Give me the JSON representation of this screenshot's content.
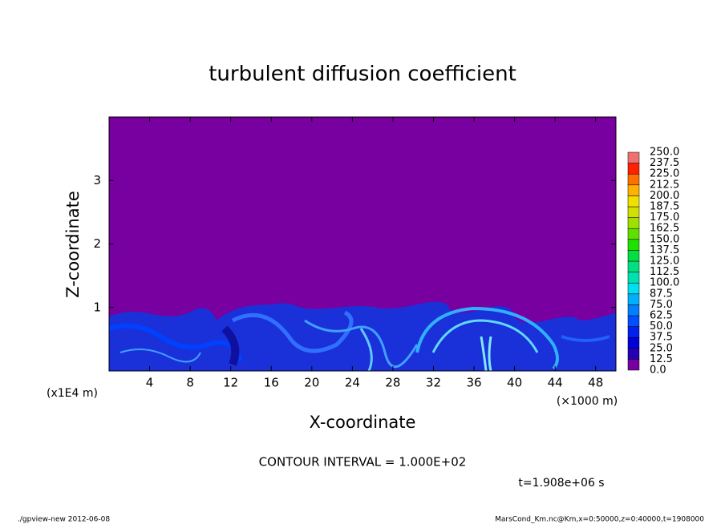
{
  "chart_data": {
    "type": "contour",
    "title": "turbulent diffusion coefficient",
    "xlabel": "X-coordinate",
    "ylabel": "Z-coordinate",
    "xunit": "(×1000 m)",
    "yunit": "(x1E4 m)",
    "xlim": [
      0,
      50
    ],
    "xticks": [
      4,
      8,
      12,
      16,
      20,
      24,
      28,
      32,
      36,
      40,
      44,
      48
    ],
    "ylim": [
      0,
      4
    ],
    "yticks": [
      1,
      2,
      3
    ],
    "levels": [
      {
        "value": 0,
        "label": "0.0"
      },
      12.5,
      {
        "value": 25,
        "label": "25.0"
      },
      37.5,
      {
        "value": 50,
        "label": "50.0"
      },
      62.5,
      {
        "value": 75,
        "label": "75.0"
      },
      87.5,
      {
        "value": 100,
        "label": "100.0"
      },
      112.5,
      {
        "value": 125,
        "label": "125.0"
      },
      137.5,
      {
        "value": 150,
        "label": "150.0"
      },
      162.5,
      {
        "value": 175,
        "label": "175.0"
      },
      187.5,
      {
        "value": 200,
        "label": "200.0"
      },
      212.5,
      {
        "value": 225,
        "label": "225.0"
      },
      237.5,
      {
        "value": 250,
        "label": "250.0"
      }
    ],
    "colors": [
      "#7800a0",
      "#2400b4",
      "#0000d8",
      "#0020f0",
      "#0050ff",
      "#0080ff",
      "#00b0ff",
      "#00e0f0",
      "#00e0b0",
      "#00e080",
      "#00e040",
      "#20e000",
      "#60e000",
      "#a0e000",
      "#d0e000",
      "#f0e000",
      "#ffb000",
      "#ff7000",
      "#ff2000",
      "#f07070"
    ],
    "contour_interval": "CONTOUR INTERVAL = 1.000E+02",
    "time": "t=1.908e+06 s",
    "footer_left": "./gpview-new  2012-06-08",
    "footer_right": "MarsCond_Km.nc@Km,x=0:50000,z=0:40000,t=1908000"
  }
}
